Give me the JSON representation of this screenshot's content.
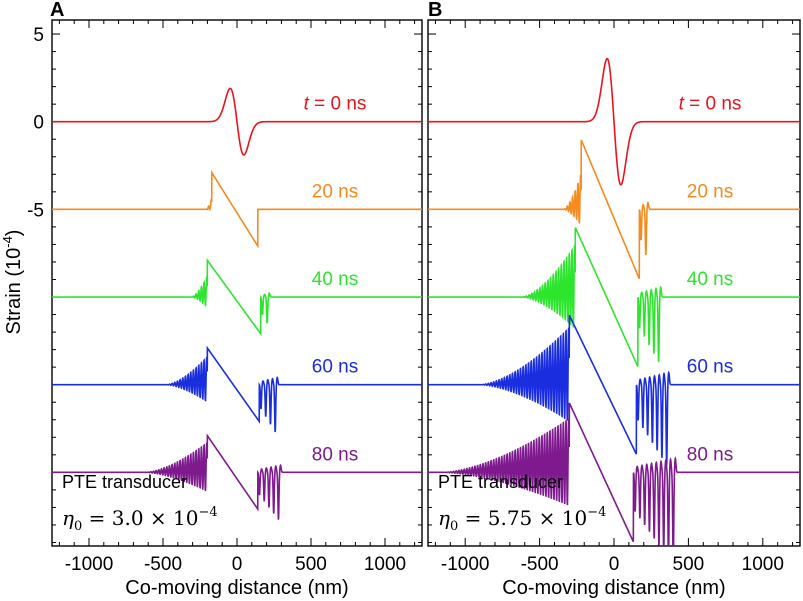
{
  "figure": {
    "ylabel_main": "Strain (10",
    "ylabel_exp": "-4",
    "ylabel_close": ")",
    "xlabel": "Co-moving distance (nm)"
  },
  "chart_data": [
    {
      "type": "line",
      "panel_label": "A",
      "xlim": [
        -1250,
        1250
      ],
      "ylim": [
        -24.2,
        5.8
      ],
      "xticks": [
        -1000,
        -500,
        0,
        500,
        1000
      ],
      "xtick_labels": [
        "-1000",
        "-500",
        "0",
        "500",
        "1000"
      ],
      "yticks": [
        5,
        0,
        -5
      ],
      "ytick_labels": [
        "5",
        "0",
        "-5"
      ],
      "xlabel": "Co-moving distance (nm)",
      "annotation_text": "PTE transducer",
      "eta_symbol": "η",
      "eta_sub": "0",
      "eta_coeff": " = 3.0 × 10",
      "eta_exp": "−4",
      "series": [
        {
          "name": "t = 0 ns",
          "label_prefix": "t",
          "label_rest": " = 0 ns",
          "color": "#e8141b",
          "offset": 0,
          "amp": 1.9,
          "t": 0,
          "width": 65,
          "center": 0,
          "lead_shift": -170,
          "trail_shift": 140,
          "osc_len": 0,
          "osc_amp": 0,
          "trail_count": 0,
          "trail_amp": 0
        },
        {
          "name": "20 ns",
          "label_prefix": "",
          "label_rest": "20 ns",
          "color": "#f58a1f",
          "offset": -5,
          "amp": 1.9,
          "t": 20,
          "width": 65,
          "center": 0,
          "lead_shift": -170,
          "trail_shift": 140,
          "osc_len": 40,
          "osc_amp": 0.35,
          "trail_count": 0,
          "trail_amp": 0
        },
        {
          "name": "40 ns",
          "label_prefix": "",
          "label_rest": "40 ns",
          "color": "#2ee52e",
          "offset": -10,
          "amp": 1.9,
          "t": 40,
          "width": 65,
          "center": 0,
          "lead_shift": -200,
          "trail_shift": 160,
          "osc_len": 110,
          "osc_amp": 0.9,
          "trail_count": 2,
          "trail_amp": 1.5
        },
        {
          "name": "60 ns",
          "label_prefix": "",
          "label_rest": "60 ns",
          "color": "#1a2ee0",
          "offset": -15,
          "amp": 1.9,
          "t": 60,
          "width": 65,
          "center": 0,
          "lead_shift": -200,
          "trail_shift": 150,
          "osc_len": 280,
          "osc_amp": 1.3,
          "trail_count": 4,
          "trail_amp": 2.7
        },
        {
          "name": "80 ns",
          "label_prefix": "",
          "label_rest": "80 ns",
          "color": "#7e1a8e",
          "offset": -20,
          "amp": 1.9,
          "t": 80,
          "width": 65,
          "center": 0,
          "lead_shift": -200,
          "trail_shift": 140,
          "osc_len": 420,
          "osc_amp": 1.4,
          "trail_count": 5,
          "trail_amp": 2.7
        }
      ]
    },
    {
      "type": "line",
      "panel_label": "B",
      "xlim": [
        -1250,
        1250
      ],
      "ylim": [
        -24.2,
        5.8
      ],
      "xticks": [
        -1000,
        -500,
        0,
        500,
        1000
      ],
      "xtick_labels": [
        "-1000",
        "-500",
        "0",
        "500",
        "1000"
      ],
      "yticks": [
        5,
        0,
        -5
      ],
      "ytick_labels": [
        "5",
        "0",
        "-5"
      ],
      "xlabel": "Co-moving distance (nm)",
      "annotation_text": "PTE transducer",
      "eta_symbol": "η",
      "eta_sub": "0",
      "eta_coeff": " = 5.75 × 10",
      "eta_exp": "−4",
      "series": [
        {
          "name": "t = 0 ns",
          "label_prefix": "t",
          "label_rest": " = 0 ns",
          "color": "#e8141b",
          "offset": 0,
          "amp": 3.6,
          "t": 0,
          "width": 65,
          "center": 0,
          "lead_shift": -200,
          "trail_shift": 170,
          "osc_len": 0,
          "osc_amp": 0,
          "trail_count": 0,
          "trail_amp": 0
        },
        {
          "name": "20 ns",
          "label_prefix": "",
          "label_rest": "20 ns",
          "color": "#f58a1f",
          "offset": -5,
          "amp": 3.6,
          "t": 20,
          "width": 65,
          "center": 0,
          "lead_shift": -220,
          "trail_shift": 170,
          "osc_len": 120,
          "osc_amp": 1.5,
          "trail_count": 2,
          "trail_amp": 2.6
        },
        {
          "name": "40 ns",
          "label_prefix": "",
          "label_rest": "40 ns",
          "color": "#2ee52e",
          "offset": -10,
          "amp": 3.6,
          "t": 40,
          "width": 65,
          "center": 0,
          "lead_shift": -260,
          "trail_shift": 160,
          "osc_len": 360,
          "osc_amp": 2.4,
          "trail_count": 5,
          "trail_amp": 3.7
        },
        {
          "name": "60 ns",
          "label_prefix": "",
          "label_rest": "60 ns",
          "color": "#1a2ee0",
          "offset": -15,
          "amp": 3.6,
          "t": 60,
          "width": 65,
          "center": 0,
          "lead_shift": -300,
          "trail_shift": 150,
          "osc_len": 600,
          "osc_amp": 2.7,
          "trail_count": 7,
          "trail_amp": 4.6
        },
        {
          "name": "80 ns",
          "label_prefix": "",
          "label_rest": "80 ns",
          "color": "#7e1a8e",
          "offset": -20,
          "amp": 3.6,
          "t": 80,
          "width": 65,
          "center": 0,
          "lead_shift": -300,
          "trail_shift": 130,
          "osc_len": 850,
          "osc_amp": 2.5,
          "trail_count": 9,
          "trail_amp": 5.3
        }
      ]
    }
  ]
}
